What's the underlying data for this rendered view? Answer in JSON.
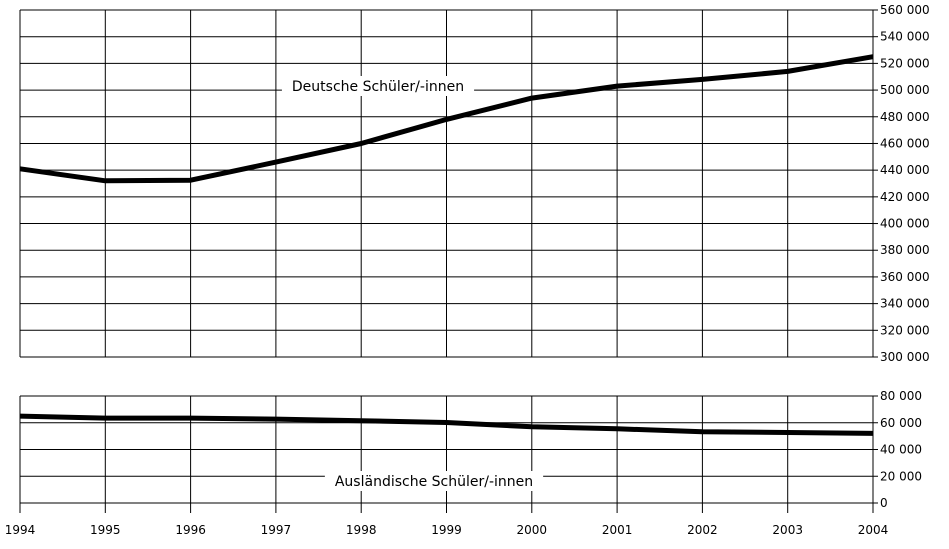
{
  "chart_data": {
    "type": "line",
    "x": [
      1994,
      1995,
      1996,
      1997,
      1998,
      1999,
      2000,
      2001,
      2002,
      2003,
      2004
    ],
    "xticks": [
      "1994",
      "1995",
      "1996",
      "1997",
      "1998",
      "1999",
      "2000",
      "2001",
      "2002",
      "2003",
      "2004"
    ],
    "axis_break": true,
    "panels": [
      {
        "ylim": [
          300000,
          560000
        ],
        "yticks": [
          "560 000",
          "540 000",
          "520 000",
          "500 000",
          "480 000",
          "460 000",
          "440 000",
          "420 000",
          "400 000",
          "380 000",
          "360 000",
          "340 000",
          "320 000",
          "300 000"
        ],
        "ytick_values": [
          560000,
          540000,
          520000,
          500000,
          480000,
          460000,
          440000,
          420000,
          400000,
          380000,
          360000,
          340000,
          320000,
          300000
        ]
      },
      {
        "ylim": [
          0,
          80000
        ],
        "yticks": [
          "80 000",
          "60 000",
          "40 000",
          "20 000",
          "0"
        ],
        "ytick_values": [
          80000,
          60000,
          40000,
          20000,
          0
        ]
      }
    ],
    "series": [
      {
        "name": "Deutsche Schüler/-innen",
        "panel": 0,
        "values": [
          441000,
          432000,
          432500,
          446000,
          460000,
          478000,
          494000,
          503000,
          508000,
          514000,
          525000
        ]
      },
      {
        "name": "Ausländische Schüler/-innen",
        "panel": 1,
        "values": [
          65000,
          63500,
          63500,
          62700,
          61500,
          60200,
          57000,
          55500,
          53300,
          52700,
          52000
        ]
      }
    ],
    "grid": true,
    "line_color": "#000000"
  }
}
